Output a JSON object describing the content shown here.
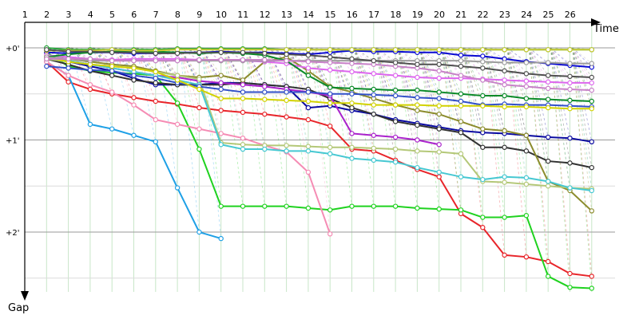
{
  "chart_data": {
    "type": "line",
    "title": "",
    "xlabel": "Time",
    "ylabel": "Gap",
    "x_ticks": [
      "1",
      "2",
      "3",
      "4",
      "5",
      "6",
      "7",
      "8",
      "9",
      "10",
      "11",
      "12",
      "13",
      "14",
      "15",
      "16",
      "17",
      "18",
      "19",
      "20",
      "21",
      "22",
      "23",
      "24",
      "25",
      "26"
    ],
    "y_ticks": [
      {
        "label": "+0'",
        "value": 0
      },
      {
        "label": "+1'",
        "value": 1
      },
      {
        "label": "+2'",
        "value": 2
      }
    ],
    "ylim": [
      -0.22,
      2.72
    ],
    "grid": true,
    "legend": "none",
    "series": [
      {
        "color": "#e8252a",
        "values": [
          0.15,
          0.37,
          0.45,
          0.5,
          0.54,
          0.58,
          0.61,
          0.65,
          0.68,
          0.7,
          0.72,
          0.75,
          0.78,
          0.85,
          1.1,
          1.12,
          1.22,
          1.32,
          1.4,
          1.8,
          1.95,
          2.25,
          2.27,
          2.32,
          2.45,
          2.48
        ]
      },
      {
        "color": "#1fd21f",
        "values": [
          0.05,
          0.2,
          0.25,
          0.27,
          0.28,
          0.3,
          0.6,
          1.1,
          1.72,
          1.72,
          1.72,
          1.72,
          1.74,
          1.76,
          1.72,
          1.72,
          1.72,
          1.74,
          1.75,
          1.76,
          1.84,
          1.84,
          1.82,
          2.48,
          2.6,
          2.61
        ]
      },
      {
        "color": "#1ea0e6",
        "values": [
          0.15,
          0.3,
          0.83,
          0.88,
          0.95,
          1.02,
          1.52,
          2.0,
          2.07
        ]
      },
      {
        "color": "#f58cb4",
        "values": [
          0.15,
          0.3,
          0.4,
          0.48,
          0.62,
          0.78,
          0.83,
          0.88,
          0.93,
          0.98,
          1.06,
          1.13,
          1.35,
          2.02
        ]
      },
      {
        "color": "#0a0aa0",
        "values": [
          0.1,
          0.15,
          0.2,
          0.25,
          0.33,
          0.4,
          0.4,
          0.4,
          0.38,
          0.38,
          0.4,
          0.42,
          0.65,
          0.63,
          0.68,
          0.72,
          0.78,
          0.82,
          0.86,
          0.9,
          0.92,
          0.93,
          0.95,
          0.97,
          0.98,
          1.02
        ]
      },
      {
        "color": "#323232",
        "values": [
          0.12,
          0.18,
          0.25,
          0.3,
          0.35,
          0.38,
          0.4,
          0.4,
          0.4,
          0.38,
          0.4,
          0.42,
          0.45,
          0.55,
          0.65,
          0.72,
          0.8,
          0.84,
          0.88,
          0.92,
          1.08,
          1.08,
          1.12,
          1.23,
          1.25,
          1.3
        ]
      },
      {
        "color": "#8c8c2d",
        "values": [
          0.1,
          0.12,
          0.15,
          0.18,
          0.2,
          0.25,
          0.3,
          0.32,
          0.3,
          0.35,
          0.15,
          0.1,
          0.25,
          0.42,
          0.48,
          0.55,
          0.62,
          0.68,
          0.72,
          0.8,
          0.88,
          0.9,
          0.95,
          1.45,
          1.55,
          1.77
        ]
      },
      {
        "color": "#aa22cc",
        "values": [
          0.1,
          0.14,
          0.18,
          0.22,
          0.26,
          0.3,
          0.32,
          0.36,
          0.38,
          0.4,
          0.42,
          0.45,
          0.48,
          0.52,
          0.93,
          0.95,
          0.97,
          1.0,
          1.05
        ]
      },
      {
        "color": "#b4c878",
        "values": [
          0.12,
          0.15,
          0.18,
          0.2,
          0.22,
          0.26,
          0.3,
          0.34,
          1.03,
          1.05,
          1.06,
          1.06,
          1.07,
          1.08,
          1.08,
          1.09,
          1.1,
          1.12,
          1.13,
          1.15,
          1.45,
          1.46,
          1.48,
          1.5,
          1.52,
          1.53
        ]
      },
      {
        "color": "#46c8d2",
        "values": [
          0.1,
          0.14,
          0.18,
          0.22,
          0.26,
          0.3,
          0.35,
          0.4,
          1.05,
          1.1,
          1.1,
          1.12,
          1.12,
          1.15,
          1.2,
          1.22,
          1.24,
          1.3,
          1.35,
          1.4,
          1.43,
          1.4,
          1.41,
          1.45,
          1.52,
          1.55
        ]
      },
      {
        "color": "#0a0ad2",
        "values": [
          0.05,
          0.06,
          0.05,
          0.05,
          0.06,
          0.06,
          0.05,
          0.05,
          0.04,
          0.05,
          0.05,
          0.06,
          0.07,
          0.05,
          0.03,
          0.04,
          0.04,
          0.05,
          0.05,
          0.08,
          0.09,
          0.12,
          0.15,
          0.17,
          0.19,
          0.21
        ]
      },
      {
        "color": "#dd66ee",
        "values": [
          0.08,
          0.1,
          0.12,
          0.13,
          0.12,
          0.12,
          0.12,
          0.13,
          0.14,
          0.14,
          0.15,
          0.17,
          0.22,
          0.24,
          0.26,
          0.28,
          0.3,
          0.32,
          0.33,
          0.33,
          0.34,
          0.35,
          0.36,
          0.37,
          0.38,
          0.38
        ]
      },
      {
        "color": "#0a8a28",
        "values": [
          0.1,
          0.07,
          0.05,
          0.04,
          0.04,
          0.04,
          0.05,
          0.06,
          0.05,
          0.06,
          0.08,
          0.14,
          0.3,
          0.43,
          0.44,
          0.45,
          0.46,
          0.46,
          0.48,
          0.5,
          0.52,
          0.52,
          0.55,
          0.56,
          0.57,
          0.58
        ]
      },
      {
        "color": "#3250c8",
        "values": [
          0.2,
          0.22,
          0.24,
          0.25,
          0.3,
          0.33,
          0.38,
          0.42,
          0.45,
          0.48,
          0.48,
          0.48,
          0.48,
          0.5,
          0.5,
          0.51,
          0.52,
          0.54,
          0.55,
          0.58,
          0.62,
          0.61,
          0.62,
          0.62,
          0.63,
          0.64
        ]
      },
      {
        "color": "#d2d200",
        "values": [
          0.1,
          0.15,
          0.18,
          0.2,
          0.22,
          0.26,
          0.35,
          0.45,
          0.55,
          0.55,
          0.56,
          0.57,
          0.58,
          0.6,
          0.6,
          0.62,
          0.62,
          0.62,
          0.63,
          0.63,
          0.63,
          0.64,
          0.64,
          0.65,
          0.66,
          0.66
        ]
      },
      {
        "color": "#9c9c9c",
        "values": [
          0.1,
          0.12,
          0.14,
          0.14,
          0.14,
          0.14,
          0.14,
          0.14,
          0.14,
          0.14,
          0.14,
          0.14,
          0.14,
          0.14,
          0.14,
          0.14,
          0.14,
          0.14,
          0.14,
          0.14,
          0.15,
          0.16,
          0.16,
          0.16,
          0.17,
          0.17
        ]
      },
      {
        "color": "#c882c8",
        "values": [
          0.12,
          0.12,
          0.12,
          0.14,
          0.14,
          0.14,
          0.14,
          0.13,
          0.13,
          0.13,
          0.13,
          0.14,
          0.15,
          0.16,
          0.17,
          0.18,
          0.2,
          0.22,
          0.25,
          0.3,
          0.35,
          0.4,
          0.42,
          0.44,
          0.45,
          0.46
        ]
      },
      {
        "color": "#26a63a",
        "values": [
          0.0,
          0.02,
          0.02,
          0.02,
          0.02,
          0.02,
          0.01,
          0.01,
          0.01,
          0.01,
          0.01,
          0.02,
          0.02,
          0.02,
          0.02,
          0.02,
          0.02,
          0.02,
          0.02,
          0.02,
          0.02,
          0.02,
          0.02,
          0.02,
          0.02,
          0.02
        ]
      },
      {
        "color": "#c8c832",
        "values": [
          0.03,
          0.03,
          0.03,
          0.02,
          0.03,
          0.03,
          0.02,
          0.02,
          0.02,
          0.02,
          0.02,
          0.02,
          0.02,
          0.02,
          0.02,
          0.02,
          0.02,
          0.02,
          0.02,
          0.02,
          0.02,
          0.02,
          0.02,
          0.02,
          0.02,
          0.02
        ]
      },
      {
        "color": "#505050",
        "values": [
          0.02,
          0.04,
          0.04,
          0.05,
          0.05,
          0.06,
          0.06,
          0.05,
          0.05,
          0.05,
          0.06,
          0.07,
          0.08,
          0.1,
          0.12,
          0.14,
          0.16,
          0.18,
          0.18,
          0.2,
          0.22,
          0.25,
          0.28,
          0.3,
          0.31,
          0.32
        ]
      }
    ]
  }
}
